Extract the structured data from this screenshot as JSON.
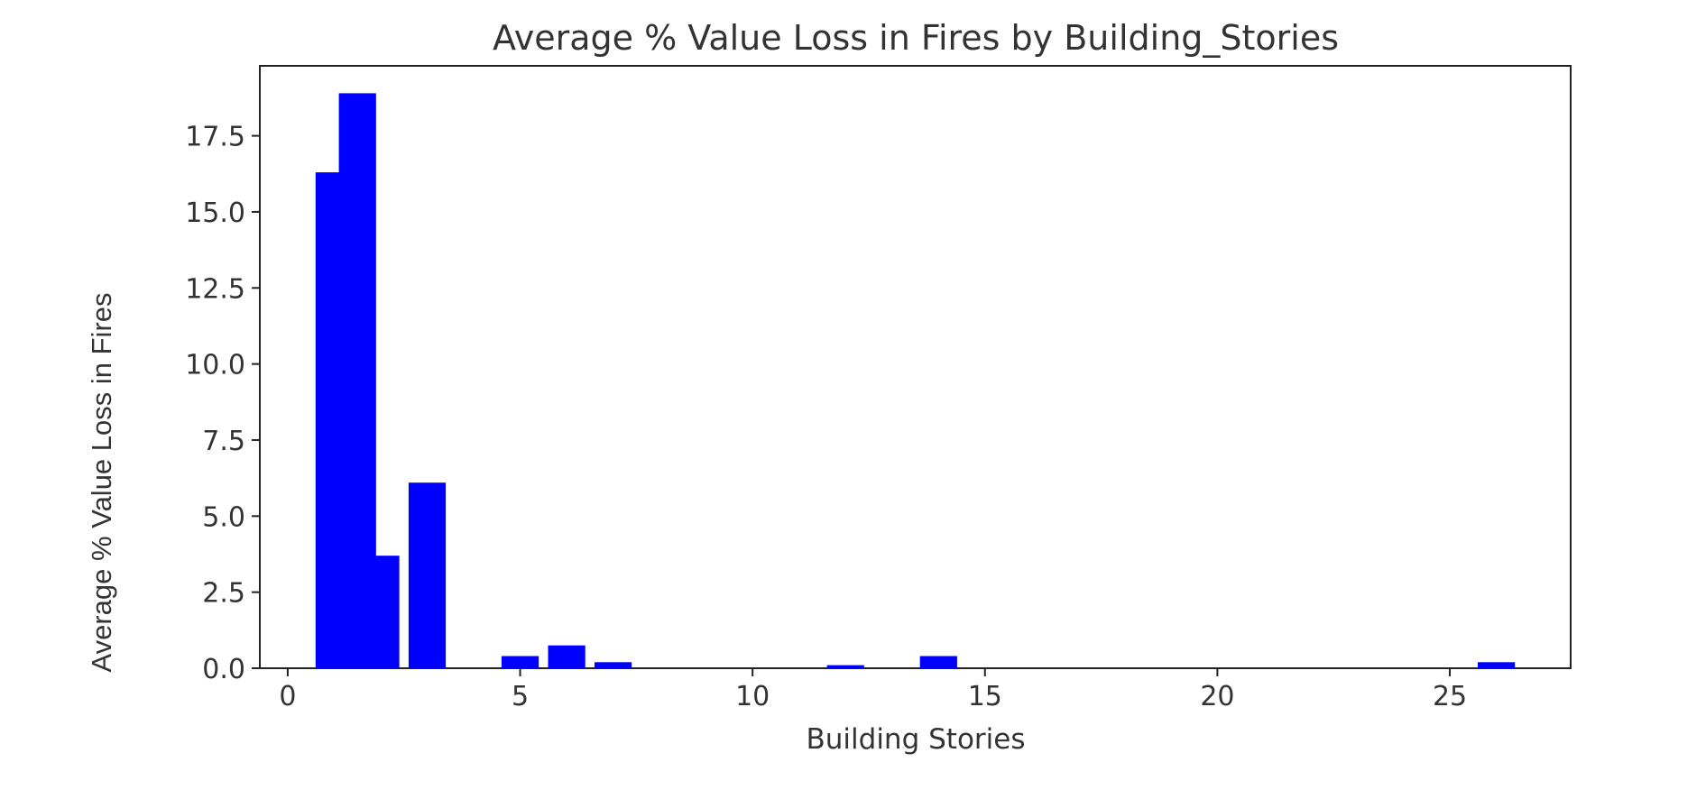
{
  "chart_data": {
    "type": "bar",
    "title": "Average % Value Loss in Fires by Building_Stories",
    "xlabel": "Building Stories",
    "ylabel": "Average % Value Loss in Fires",
    "xlim": [
      -0.6,
      27.6
    ],
    "ylim": [
      0,
      19.8
    ],
    "xticks": [
      0,
      5,
      10,
      15,
      20,
      25
    ],
    "xtick_labels": [
      "0",
      "5",
      "10",
      "15",
      "20",
      "25"
    ],
    "yticks": [
      0,
      2.5,
      5,
      7.5,
      10,
      12.5,
      15,
      17.5
    ],
    "ytick_labels": [
      "0.0",
      "2.5",
      "5.0",
      "7.5",
      "10.0",
      "12.5",
      "15.0",
      "17.5"
    ],
    "bar_width": 0.8,
    "color": "#0000ff",
    "grid": false,
    "x": [
      1,
      1.5,
      2,
      3,
      5,
      6,
      7,
      12,
      14,
      26
    ],
    "values": [
      16.3,
      18.9,
      3.7,
      6.1,
      0.4,
      0.75,
      0.2,
      0.1,
      0.4,
      0.2
    ]
  }
}
